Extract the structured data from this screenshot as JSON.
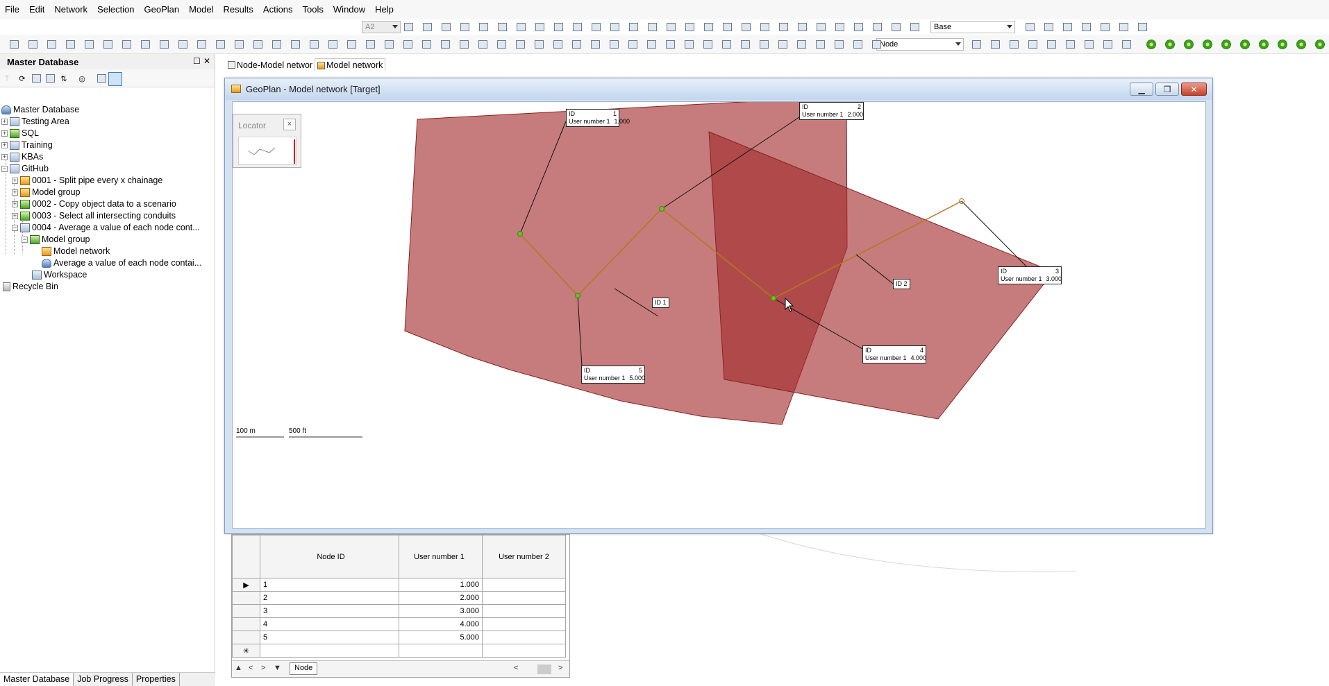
{
  "menu": {
    "items": [
      "File",
      "Edit",
      "Network",
      "Selection",
      "GeoPlan",
      "Model",
      "Results",
      "Actions",
      "Tools",
      "Window",
      "Help"
    ],
    "scenario_combo": "A2",
    "base_combo": "Base"
  },
  "toolbar": {
    "layer_combo": "Node"
  },
  "left_panel": {
    "title": "Master Database",
    "tree": [
      {
        "label": "Master Database"
      },
      {
        "label": "Testing Area"
      },
      {
        "label": "SQL"
      },
      {
        "label": "Training"
      },
      {
        "label": "KBAs"
      },
      {
        "label": "GitHub"
      },
      {
        "label": "0001 - Split pipe every x chainage"
      },
      {
        "label": "Model group"
      },
      {
        "label": "0002 - Copy object data to a scenario"
      },
      {
        "label": "0003 - Select all intersecting conduits"
      },
      {
        "label": "0004 - Average a value of each node cont..."
      },
      {
        "label": "Model group"
      },
      {
        "label": "Model network"
      },
      {
        "label": "Average a value of each node contai..."
      },
      {
        "label": "Workspace"
      },
      {
        "label": "Recycle Bin"
      }
    ],
    "bottom_tabs": [
      "Master Database",
      "Job Progress",
      "Properties"
    ]
  },
  "doc_tabs": [
    "Node-Model networ",
    "Model network"
  ],
  "geoplan": {
    "title": "GeoPlan - Model network [Target]",
    "locator_title": "Locator",
    "locator_close": "×",
    "scale_m": "100 m",
    "scale_ft": "500 ft",
    "node_labels": [
      {
        "id_label": "ID",
        "id": "1",
        "u_label": "User number 1",
        "u": "1.000"
      },
      {
        "id_label": "ID",
        "id": "2",
        "u_label": "User number 1",
        "u": "2.000"
      },
      {
        "id_label": "ID",
        "id": "3",
        "u_label": "User number 1",
        "u": "3.000"
      },
      {
        "id_label": "ID",
        "id": "4",
        "u_label": "User number 1",
        "u": "4.000"
      },
      {
        "id_label": "ID",
        "id": "5",
        "u_label": "User number 1",
        "u": "5.000"
      }
    ],
    "polygon_labels": [
      {
        "text": "ID  1"
      },
      {
        "text": "ID  2"
      }
    ],
    "colors": {
      "polygon": "#a32b2b",
      "link": "#b07a1c",
      "node": "#6bbf2a"
    }
  },
  "grid": {
    "headers": [
      "Node ID",
      "User number 1",
      "User number 2"
    ],
    "rows": [
      {
        "id": "1",
        "u1": "1.000",
        "u2": ""
      },
      {
        "id": "2",
        "u1": "2.000",
        "u2": ""
      },
      {
        "id": "3",
        "u1": "3.000",
        "u2": ""
      },
      {
        "id": "4",
        "u1": "4.000",
        "u2": ""
      },
      {
        "id": "5",
        "u1": "5.000",
        "u2": ""
      }
    ],
    "new_row_marker": "✳",
    "current_row_marker": "▶",
    "sheet_tab": "Node"
  }
}
